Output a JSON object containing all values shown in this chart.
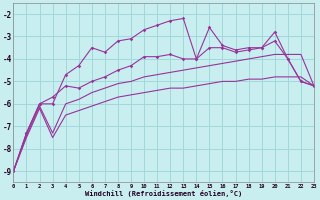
{
  "xlabel": "Windchill (Refroidissement éolien,°C)",
  "background_color": "#c8eef0",
  "grid_color": "#a0d8dc",
  "line_color": "#993399",
  "xlim": [
    0,
    23
  ],
  "ylim": [
    -9.5,
    -1.5
  ],
  "xticks": [
    0,
    1,
    2,
    3,
    4,
    5,
    6,
    7,
    8,
    9,
    10,
    11,
    12,
    13,
    14,
    15,
    16,
    17,
    18,
    19,
    20,
    21,
    22,
    23
  ],
  "yticks": [
    -9,
    -8,
    -7,
    -6,
    -5,
    -4,
    -3,
    -2
  ],
  "x_data": [
    0,
    1,
    2,
    3,
    4,
    5,
    6,
    7,
    8,
    9,
    10,
    11,
    12,
    13,
    14,
    15,
    16,
    17,
    18,
    19,
    20,
    21,
    22,
    23
  ],
  "line_top": [
    -9.0,
    -7.3,
    -6.0,
    -6.0,
    -4.7,
    -4.3,
    -3.5,
    -3.7,
    -3.2,
    -3.1,
    -2.7,
    -2.5,
    -2.3,
    -2.2,
    -4.0,
    -2.6,
    -3.4,
    -3.6,
    -3.5,
    -3.5,
    -2.8,
    -4.0,
    -5.0,
    -5.2
  ],
  "line_mid": [
    -9.0,
    -7.3,
    -6.0,
    -5.7,
    -5.2,
    -5.3,
    -5.0,
    -4.8,
    -4.5,
    -4.3,
    -3.9,
    -3.9,
    -3.8,
    -4.0,
    -4.0,
    -3.5,
    -3.5,
    -3.7,
    -3.6,
    -3.5,
    -3.2,
    -4.0,
    -5.0,
    -5.2
  ],
  "line_lo1": [
    -9.0,
    -7.4,
    -6.1,
    -7.3,
    -6.0,
    -5.8,
    -5.5,
    -5.3,
    -5.1,
    -5.0,
    -4.8,
    -4.7,
    -4.6,
    -4.5,
    -4.4,
    -4.3,
    -4.2,
    -4.1,
    -4.0,
    -3.9,
    -3.8,
    -3.8,
    -3.8,
    -5.2
  ],
  "line_lo2": [
    -9.0,
    -7.5,
    -6.2,
    -7.5,
    -6.5,
    -6.3,
    -6.1,
    -5.9,
    -5.7,
    -5.6,
    -5.5,
    -5.4,
    -5.3,
    -5.3,
    -5.2,
    -5.1,
    -5.0,
    -5.0,
    -4.9,
    -4.9,
    -4.8,
    -4.8,
    -4.8,
    -5.2
  ]
}
